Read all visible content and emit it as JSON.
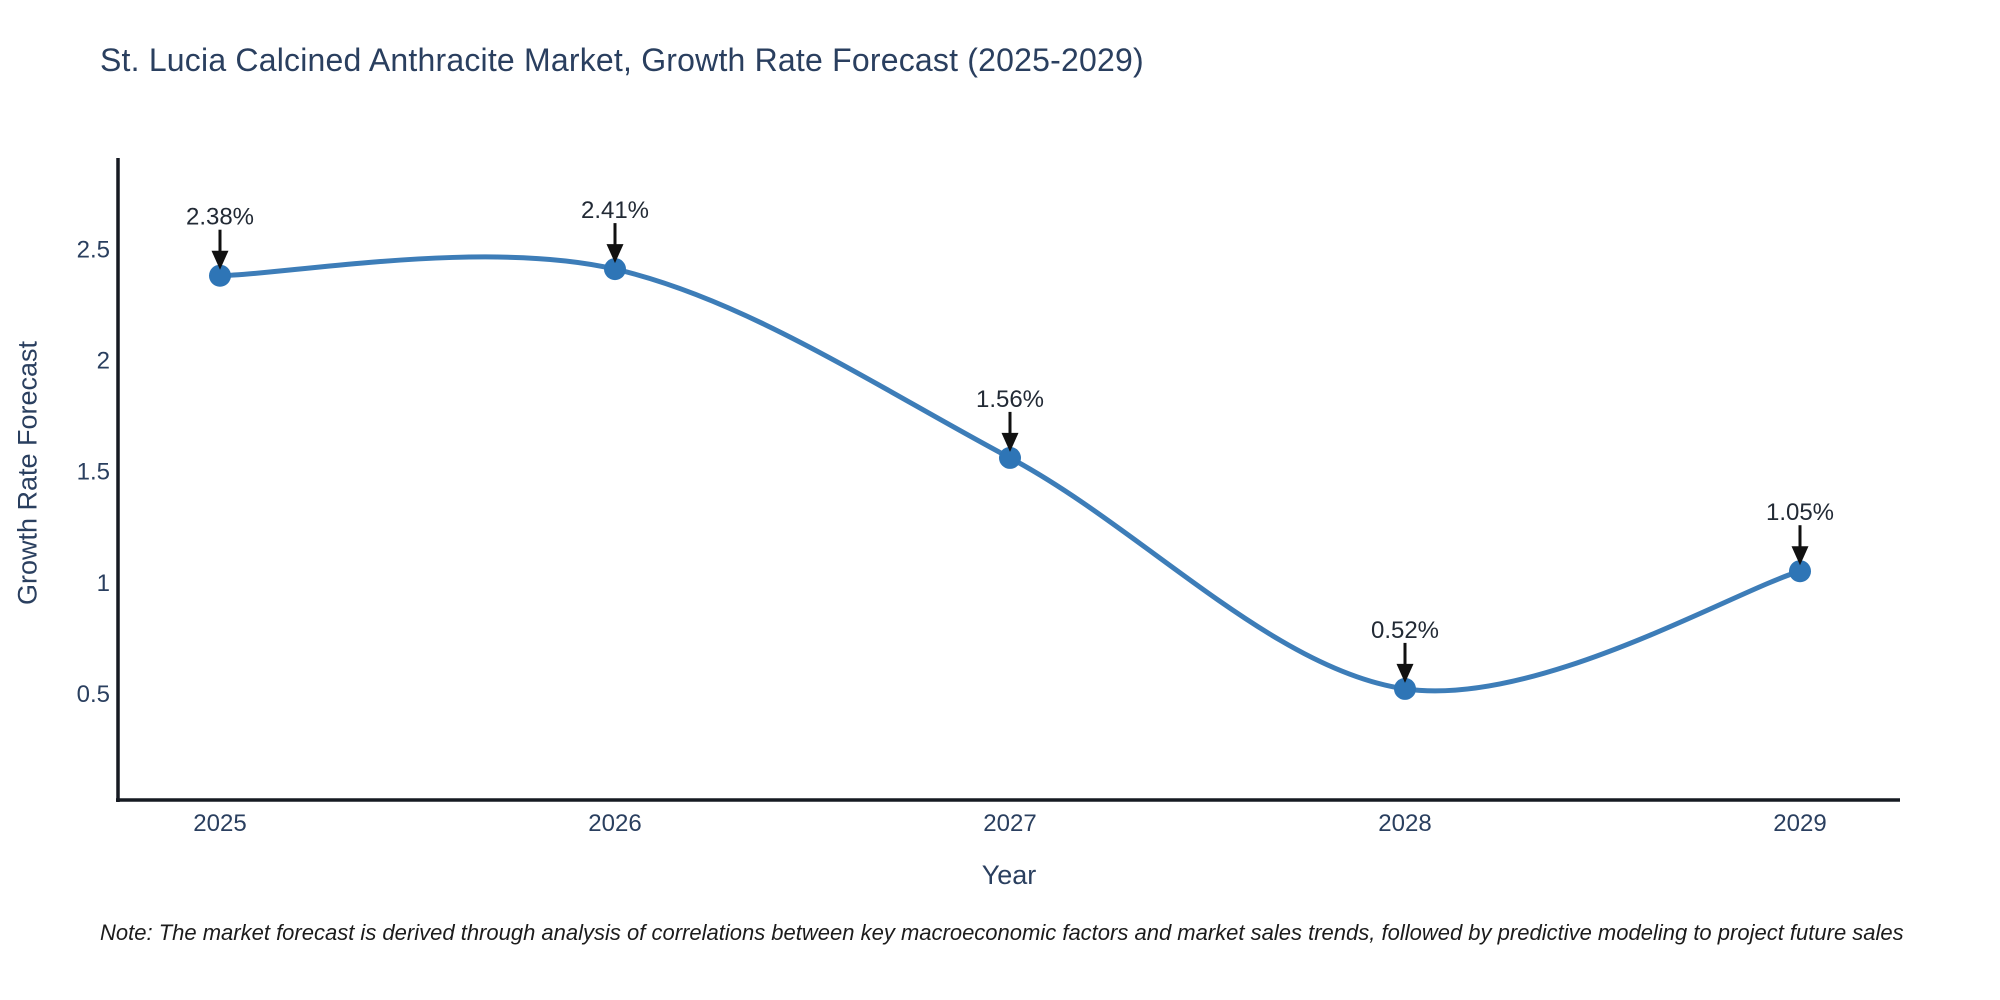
{
  "page": {
    "title": "St. Lucia Calcined Anthracite Market, Growth Rate Forecast (2025-2029)"
  },
  "chart_data": {
    "type": "line",
    "title": "St. Lucia Calcined Anthracite Market, Growth Rate Forecast (2025-2029)",
    "categories": [
      "2025",
      "2026",
      "2027",
      "2028",
      "2029"
    ],
    "series": [
      {
        "name": "Growth Rate Forecast",
        "values": [
          2.38,
          2.41,
          1.56,
          0.52,
          1.05
        ]
      }
    ],
    "point_labels": [
      "2.38%",
      "2.41%",
      "1.56%",
      "0.52%",
      "1.05%"
    ],
    "xlabel": "Year",
    "ylabel": "Growth Rate Forecast",
    "yticks": [
      0.5,
      1,
      1.5,
      2,
      2.5
    ],
    "ytick_labels": [
      "0.5",
      "1",
      "1.5",
      "2",
      "2.5"
    ],
    "ylim": [
      0.02,
      2.91
    ],
    "line_shape": "spline",
    "grid": false,
    "legend_position": "none",
    "annotations_have_arrows": true
  },
  "note": {
    "text": "Note: The market forecast is derived through analysis of correlations between key macroeconomic factors and market sales trends, followed by predictive modeling to project future sales"
  },
  "colors": {
    "title": "#2a3f5f",
    "axis_text": "#2a3f5f",
    "axis_line": "#161a22",
    "line": "#3d7db8",
    "marker": "#2e75b6",
    "annotation_text": "#222a35",
    "arrow": "#111111",
    "note_text": "#1c1c1c",
    "background": "#ffffff"
  }
}
